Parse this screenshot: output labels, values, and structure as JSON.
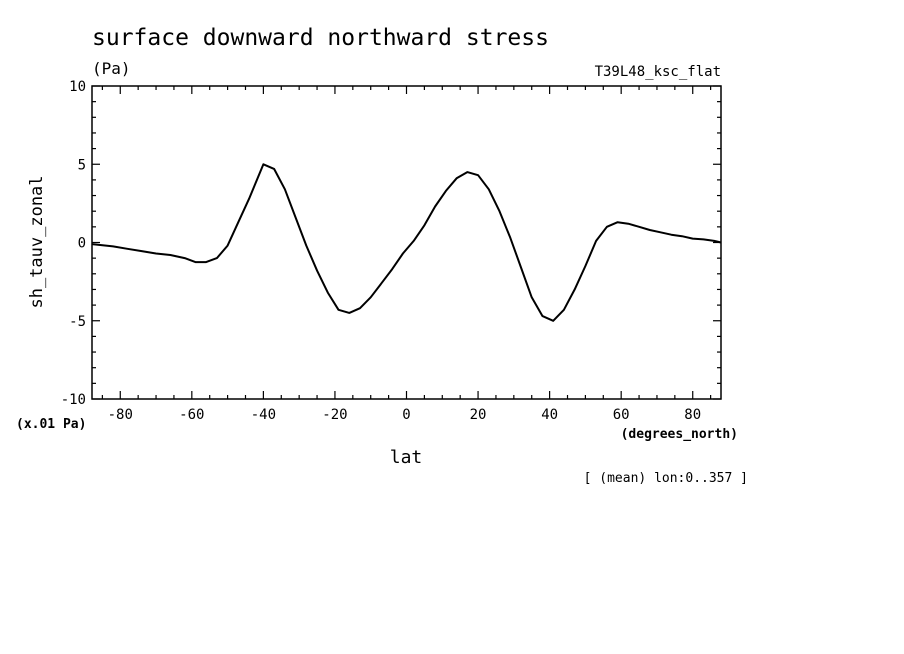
{
  "chart_data": {
    "type": "line",
    "title": "surface downward northward stress",
    "units": "(Pa)",
    "experiment": "T39L48_ksc_flat",
    "xlabel": "lat",
    "x_units": "(degrees_north)",
    "ylabel": "sh_tauv_zonal",
    "y_scale_note": "(x.01 Pa)",
    "footnote": "[ (mean) lon:0..357 ]",
    "xlim": [
      -87.9,
      87.9
    ],
    "ylim": [
      -10,
      10
    ],
    "x_ticks": [
      -80,
      -60,
      -40,
      -20,
      0,
      20,
      40,
      60,
      80
    ],
    "x_tick_labels": [
      "-80",
      "-60",
      "-40",
      "-20",
      "0",
      "20",
      "40",
      "60",
      "80"
    ],
    "y_ticks": [
      -10,
      -5,
      0,
      5,
      10
    ],
    "y_tick_labels": [
      "-10",
      "-5",
      "0",
      "5",
      "10"
    ],
    "series": [
      {
        "x": [
          -87.9,
          -82,
          -78,
          -74,
          -70,
          -66,
          -62,
          -59,
          -56,
          -53,
          -50,
          -47,
          -44,
          -40,
          -37,
          -34,
          -31,
          -28,
          -25,
          -22,
          -19,
          -16,
          -13,
          -10,
          -7,
          -4,
          -1,
          2,
          5,
          8,
          11,
          14,
          17,
          20,
          23,
          26,
          29,
          32,
          35,
          38,
          41,
          44,
          47,
          50,
          53,
          56,
          59,
          62,
          65,
          68,
          71,
          74,
          77,
          80,
          83,
          86,
          87.9
        ],
        "y": [
          -0.1,
          -0.25,
          -0.4,
          -0.55,
          -0.7,
          -0.8,
          -1.0,
          -1.25,
          -1.25,
          -1.0,
          -0.2,
          1.3,
          2.8,
          5.0,
          4.7,
          3.4,
          1.6,
          -0.2,
          -1.8,
          -3.2,
          -4.3,
          -4.5,
          -4.2,
          -3.5,
          -2.6,
          -1.7,
          -0.7,
          0.1,
          1.1,
          2.3,
          3.3,
          4.1,
          4.5,
          4.3,
          3.4,
          2.0,
          0.3,
          -1.6,
          -3.5,
          -4.7,
          -5.0,
          -4.3,
          -3.0,
          -1.5,
          0.1,
          1.0,
          1.3,
          1.2,
          1.0,
          0.8,
          0.65,
          0.5,
          0.4,
          0.25,
          0.2,
          0.1,
          0.0
        ]
      }
    ]
  }
}
